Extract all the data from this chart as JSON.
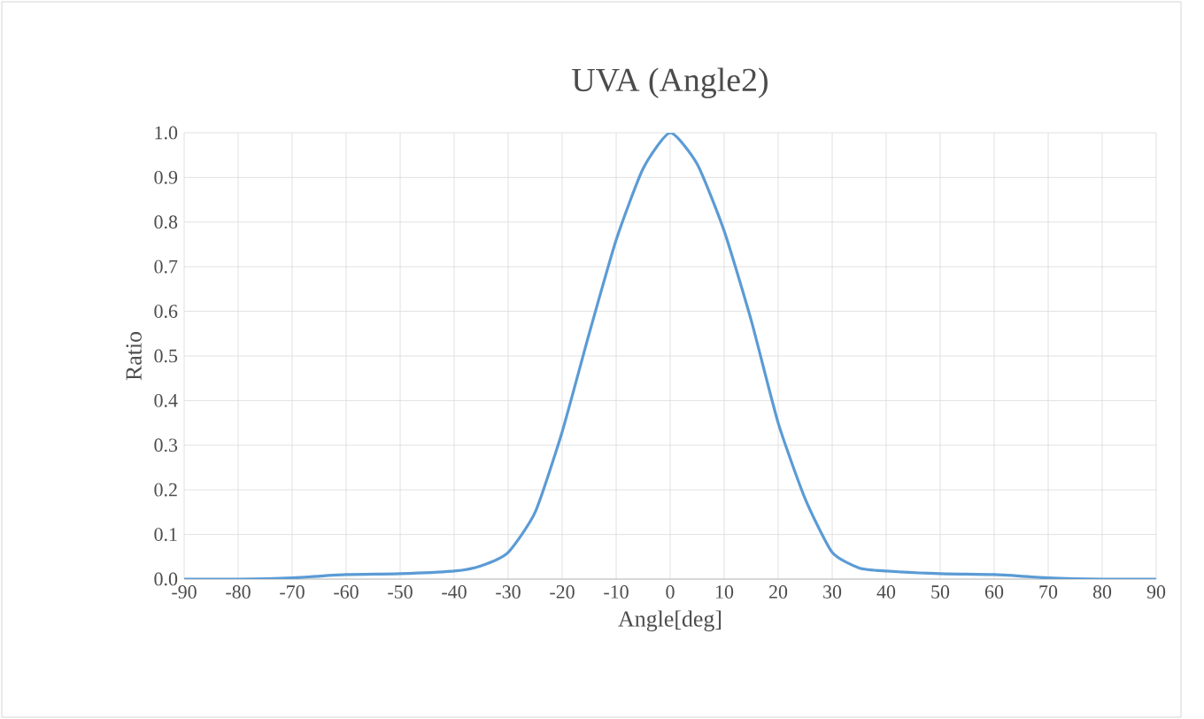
{
  "chart_data": {
    "type": "line",
    "title": "UVA (Angle2)",
    "xlabel": "Angle[deg]",
    "ylabel": "Ratio",
    "x": [
      -90,
      -80,
      -70,
      -60,
      -50,
      -40,
      -35,
      -30,
      -25,
      -20,
      -15,
      -10,
      -5,
      0,
      5,
      10,
      15,
      20,
      25,
      30,
      35,
      40,
      50,
      60,
      70,
      80,
      90
    ],
    "series": [
      {
        "color": "#5b9bd5",
        "values": [
          0,
          0,
          0.003,
          0.01,
          0.012,
          0.018,
          0.03,
          0.06,
          0.15,
          0.33,
          0.55,
          0.76,
          0.92,
          1.0,
          0.93,
          0.78,
          0.58,
          0.35,
          0.18,
          0.06,
          0.025,
          0.018,
          0.012,
          0.01,
          0.003,
          0,
          0
        ]
      }
    ],
    "xlim": [
      -90,
      90
    ],
    "xticks": [
      -90,
      -80,
      -70,
      -60,
      -50,
      -40,
      -30,
      -20,
      -10,
      0,
      10,
      20,
      30,
      40,
      50,
      60,
      70,
      80,
      90
    ],
    "ylim": [
      0,
      1
    ],
    "yticks": [
      {
        "value": 0,
        "label": "0.0"
      },
      {
        "value": 0.1,
        "label": "0.1"
      },
      {
        "value": 0.2,
        "label": "0.2"
      },
      {
        "value": 0.3,
        "label": "0.3"
      },
      {
        "value": 0.4,
        "label": "0.4"
      },
      {
        "value": 0.5,
        "label": "0.5"
      },
      {
        "value": 0.6,
        "label": "0.6"
      },
      {
        "value": 0.7,
        "label": "0.7"
      },
      {
        "value": 0.8,
        "label": "0.8"
      },
      {
        "value": 0.9,
        "label": "0.9"
      },
      {
        "value": 1.0,
        "label": "1.0"
      }
    ],
    "grid": true,
    "marker": "none",
    "line_style": "solid"
  }
}
